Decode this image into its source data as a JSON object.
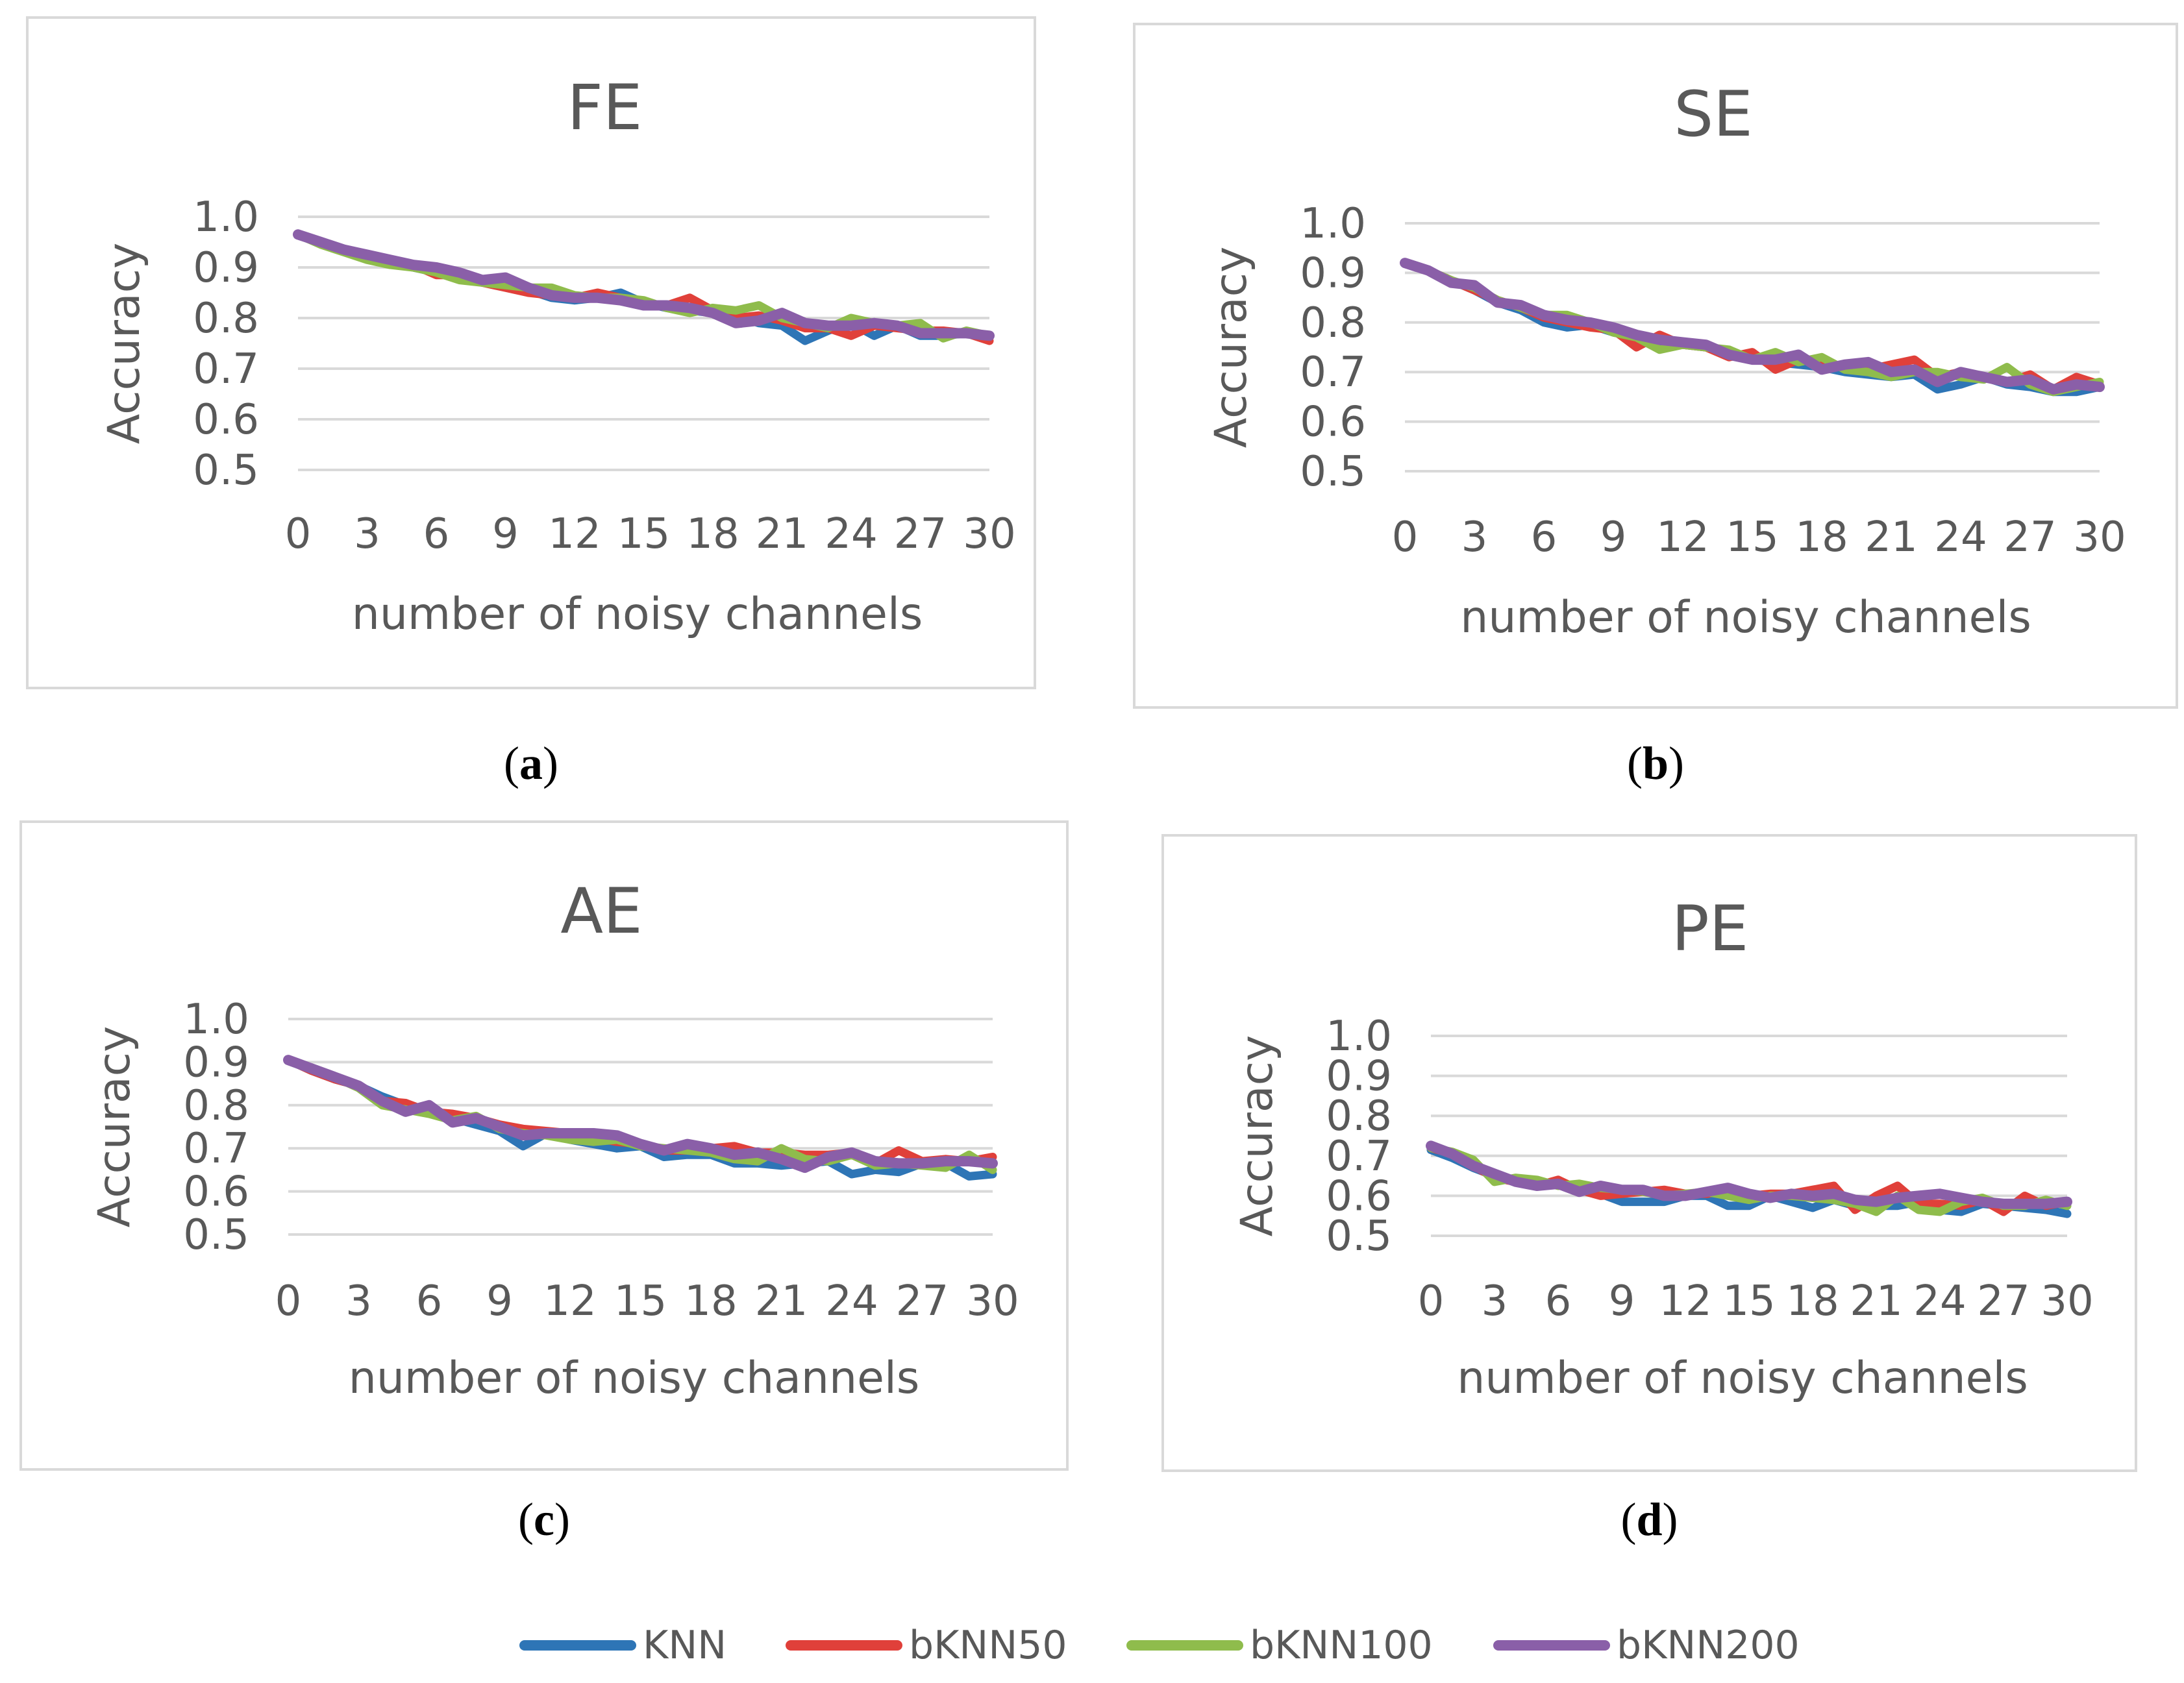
{
  "colors": {
    "KNN": "#2e75b6",
    "bKNN50": "#e0403a",
    "bKNN100": "#8fbc4c",
    "bKNN200": "#8a5fa8"
  },
  "legend": [
    {
      "key": "KNN",
      "label": "KNN"
    },
    {
      "key": "bKNN50",
      "label": "bKNN50"
    },
    {
      "key": "bKNN100",
      "label": "bKNN100"
    },
    {
      "key": "bKNN200",
      "label": "bKNN200"
    }
  ],
  "chart_data": [
    {
      "id": "a",
      "caption": "a",
      "type": "line",
      "title": "FE",
      "xlabel": "number of noisy channels",
      "ylabel": "Accuracy",
      "xticks": [
        0,
        3,
        6,
        9,
        12,
        15,
        18,
        21,
        24,
        27,
        30
      ],
      "yticks": [
        "0.5",
        "0.6",
        "0.7",
        "0.8",
        "0.9",
        "1.0"
      ],
      "xlim": [
        0,
        30
      ],
      "ylim": [
        0.5,
        1.0
      ],
      "series": [
        {
          "name": "KNN",
          "values": [
            0.965,
            0.95,
            0.935,
            0.92,
            0.91,
            0.9,
            0.89,
            0.885,
            0.875,
            0.865,
            0.855,
            0.84,
            0.835,
            0.84,
            0.85,
            0.83,
            0.82,
            0.815,
            0.81,
            0.805,
            0.79,
            0.785,
            0.755,
            0.775,
            0.79,
            0.765,
            0.785,
            0.765,
            0.765,
            0.77,
            0.765
          ]
        },
        {
          "name": "bKNN50",
          "values": [
            0.965,
            0.95,
            0.935,
            0.925,
            0.915,
            0.905,
            0.885,
            0.885,
            0.87,
            0.86,
            0.85,
            0.845,
            0.84,
            0.85,
            0.84,
            0.825,
            0.825,
            0.84,
            0.815,
            0.8,
            0.805,
            0.795,
            0.78,
            0.78,
            0.765,
            0.785,
            0.78,
            0.775,
            0.775,
            0.77,
            0.755
          ]
        },
        {
          "name": "bKNN100",
          "values": [
            0.965,
            0.945,
            0.93,
            0.915,
            0.905,
            0.9,
            0.89,
            0.875,
            0.87,
            0.865,
            0.86,
            0.86,
            0.845,
            0.84,
            0.84,
            0.835,
            0.82,
            0.81,
            0.82,
            0.815,
            0.825,
            0.8,
            0.79,
            0.78,
            0.8,
            0.79,
            0.785,
            0.79,
            0.76,
            0.775,
            0.765
          ]
        },
        {
          "name": "bKNN200",
          "values": [
            0.965,
            0.95,
            0.935,
            0.925,
            0.915,
            0.905,
            0.9,
            0.89,
            0.875,
            0.88,
            0.86,
            0.845,
            0.84,
            0.84,
            0.835,
            0.825,
            0.825,
            0.82,
            0.81,
            0.79,
            0.795,
            0.81,
            0.79,
            0.785,
            0.785,
            0.79,
            0.785,
            0.77,
            0.77,
            0.77,
            0.765
          ]
        }
      ]
    },
    {
      "id": "b",
      "caption": "b",
      "type": "line",
      "title": "SE",
      "xlabel": "number of noisy channels",
      "ylabel": "Accuracy",
      "xticks": [
        0,
        3,
        6,
        9,
        12,
        15,
        18,
        21,
        24,
        27,
        30
      ],
      "yticks": [
        "0.5",
        "0.6",
        "0.7",
        "0.8",
        "0.9",
        "1.0"
      ],
      "xlim": [
        0,
        30
      ],
      "ylim": [
        0.5,
        1.0
      ],
      "series": [
        {
          "name": "KNN",
          "values": [
            0.92,
            0.905,
            0.885,
            0.865,
            0.84,
            0.825,
            0.8,
            0.79,
            0.795,
            0.78,
            0.77,
            0.76,
            0.755,
            0.75,
            0.735,
            0.725,
            0.72,
            0.715,
            0.71,
            0.7,
            0.695,
            0.69,
            0.695,
            0.665,
            0.675,
            0.69,
            0.675,
            0.67,
            0.66,
            0.66,
            0.67
          ]
        },
        {
          "name": "bKNN50",
          "values": [
            0.92,
            0.905,
            0.885,
            0.865,
            0.845,
            0.83,
            0.81,
            0.8,
            0.79,
            0.785,
            0.75,
            0.775,
            0.755,
            0.75,
            0.73,
            0.74,
            0.705,
            0.725,
            0.72,
            0.71,
            0.705,
            0.715,
            0.725,
            0.69,
            0.7,
            0.69,
            0.68,
            0.695,
            0.665,
            0.69,
            0.675
          ]
        },
        {
          "name": "bKNN100",
          "values": [
            0.92,
            0.905,
            0.885,
            0.87,
            0.845,
            0.83,
            0.815,
            0.815,
            0.8,
            0.78,
            0.77,
            0.745,
            0.755,
            0.75,
            0.745,
            0.725,
            0.74,
            0.72,
            0.73,
            0.705,
            0.7,
            0.69,
            0.7,
            0.7,
            0.69,
            0.685,
            0.71,
            0.675,
            0.66,
            0.67,
            0.68
          ]
        },
        {
          "name": "bKNN200",
          "values": [
            0.92,
            0.905,
            0.88,
            0.875,
            0.84,
            0.835,
            0.815,
            0.805,
            0.8,
            0.79,
            0.775,
            0.765,
            0.76,
            0.755,
            0.735,
            0.725,
            0.725,
            0.735,
            0.705,
            0.715,
            0.72,
            0.7,
            0.705,
            0.68,
            0.7,
            0.69,
            0.68,
            0.685,
            0.665,
            0.675,
            0.67
          ]
        }
      ]
    },
    {
      "id": "c",
      "caption": "c",
      "type": "line",
      "title": "AE",
      "xlabel": "number of noisy channels",
      "ylabel": "Accuracy",
      "xticks": [
        0,
        3,
        6,
        9,
        12,
        15,
        18,
        21,
        24,
        27,
        30
      ],
      "yticks": [
        "0.5",
        "0.6",
        "0.7",
        "0.8",
        "0.9",
        "1.0"
      ],
      "xlim": [
        0,
        30
      ],
      "ylim": [
        0.5,
        1.0
      ],
      "series": [
        {
          "name": "KNN",
          "values": [
            0.905,
            0.88,
            0.86,
            0.845,
            0.82,
            0.8,
            0.785,
            0.77,
            0.755,
            0.74,
            0.705,
            0.735,
            0.72,
            0.71,
            0.7,
            0.705,
            0.68,
            0.685,
            0.685,
            0.665,
            0.665,
            0.66,
            0.665,
            0.67,
            0.64,
            0.65,
            0.645,
            0.665,
            0.665,
            0.635,
            0.64
          ]
        },
        {
          "name": "bKNN50",
          "values": [
            0.905,
            0.88,
            0.86,
            0.845,
            0.81,
            0.805,
            0.785,
            0.78,
            0.77,
            0.755,
            0.745,
            0.74,
            0.735,
            0.725,
            0.715,
            0.71,
            0.695,
            0.695,
            0.7,
            0.705,
            0.69,
            0.69,
            0.685,
            0.685,
            0.69,
            0.665,
            0.695,
            0.67,
            0.675,
            0.67,
            0.68
          ]
        },
        {
          "name": "bKNN100",
          "values": [
            0.905,
            0.885,
            0.865,
            0.84,
            0.8,
            0.79,
            0.78,
            0.765,
            0.775,
            0.745,
            0.735,
            0.73,
            0.72,
            0.715,
            0.72,
            0.705,
            0.7,
            0.695,
            0.69,
            0.675,
            0.67,
            0.7,
            0.675,
            0.67,
            0.685,
            0.66,
            0.665,
            0.66,
            0.655,
            0.685,
            0.65
          ]
        },
        {
          "name": "bKNN200",
          "values": [
            0.905,
            0.885,
            0.865,
            0.845,
            0.81,
            0.785,
            0.8,
            0.76,
            0.77,
            0.75,
            0.73,
            0.735,
            0.735,
            0.735,
            0.73,
            0.71,
            0.695,
            0.71,
            0.7,
            0.685,
            0.69,
            0.675,
            0.655,
            0.68,
            0.69,
            0.67,
            0.665,
            0.665,
            0.67,
            0.67,
            0.665
          ]
        }
      ]
    },
    {
      "id": "d",
      "caption": "d",
      "type": "line",
      "title": "PE",
      "xlabel": "number of noisy channels",
      "ylabel": "Accuracy",
      "xticks": [
        0,
        3,
        6,
        9,
        12,
        15,
        18,
        21,
        24,
        27,
        30
      ],
      "yticks": [
        "0.5",
        "0.6",
        "0.7",
        "0.8",
        "0.9",
        "1.0"
      ],
      "xlim": [
        0,
        30
      ],
      "ylim": [
        0.5,
        1.0
      ],
      "series": [
        {
          "name": "KNN",
          "values": [
            0.715,
            0.695,
            0.67,
            0.65,
            0.64,
            0.63,
            0.63,
            0.615,
            0.605,
            0.585,
            0.585,
            0.585,
            0.6,
            0.6,
            0.575,
            0.575,
            0.6,
            0.585,
            0.57,
            0.59,
            0.575,
            0.575,
            0.575,
            0.585,
            0.565,
            0.56,
            0.58,
            0.575,
            0.57,
            0.565,
            0.555
          ]
        },
        {
          "name": "bKNN50",
          "values": [
            0.72,
            0.705,
            0.675,
            0.645,
            0.635,
            0.625,
            0.64,
            0.615,
            0.6,
            0.605,
            0.61,
            0.615,
            0.605,
            0.605,
            0.615,
            0.6,
            0.605,
            0.605,
            0.615,
            0.625,
            0.565,
            0.6,
            0.625,
            0.58,
            0.58,
            0.575,
            0.59,
            0.56,
            0.6,
            0.575,
            0.585
          ]
        },
        {
          "name": "bKNN100",
          "values": [
            0.72,
            0.71,
            0.69,
            0.635,
            0.645,
            0.64,
            0.625,
            0.63,
            0.62,
            0.615,
            0.61,
            0.6,
            0.605,
            0.61,
            0.6,
            0.59,
            0.6,
            0.6,
            0.595,
            0.59,
            0.58,
            0.56,
            0.6,
            0.565,
            0.56,
            0.585,
            0.595,
            0.575,
            0.575,
            0.59,
            0.575
          ]
        },
        {
          "name": "bKNN200",
          "values": [
            0.725,
            0.705,
            0.675,
            0.655,
            0.635,
            0.625,
            0.63,
            0.61,
            0.625,
            0.615,
            0.615,
            0.6,
            0.6,
            0.61,
            0.62,
            0.605,
            0.595,
            0.605,
            0.6,
            0.605,
            0.59,
            0.585,
            0.595,
            0.6,
            0.605,
            0.595,
            0.585,
            0.58,
            0.58,
            0.58,
            0.585
          ]
        }
      ]
    }
  ]
}
